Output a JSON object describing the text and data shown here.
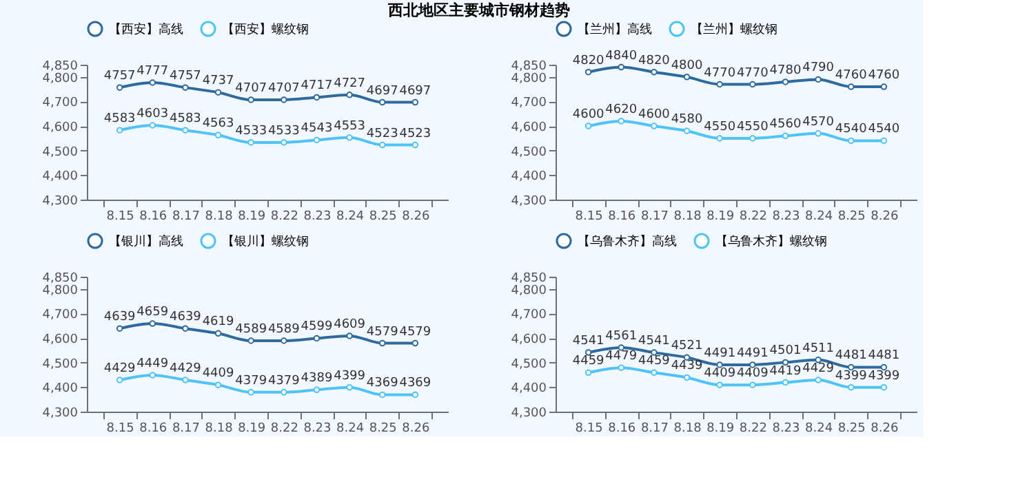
{
  "chart_data": [
    {
      "type": "line",
      "title": "西北地区主要城市钢材趋势",
      "categories": [
        "8.15",
        "8.16",
        "8.17",
        "8.18",
        "8.19",
        "8.22",
        "8.23",
        "8.24",
        "8.25",
        "8.26"
      ],
      "series": [
        {
          "name": "【西安】高线",
          "color": "#2f6a9e",
          "values": [
            4757,
            4777,
            4757,
            4737,
            4707,
            4707,
            4717,
            4727,
            4697,
            4697
          ]
        },
        {
          "name": "【西安】螺纹钢",
          "color": "#4fc3f7",
          "values": [
            4583,
            4603,
            4583,
            4563,
            4533,
            4533,
            4543,
            4553,
            4523,
            4523
          ]
        }
      ],
      "ylim": [
        4300,
        4850
      ],
      "yticks": [
        {
          "value": 4300,
          "label": "4,300"
        },
        {
          "value": 4400,
          "label": "4,400"
        },
        {
          "value": 4500,
          "label": "4,500"
        },
        {
          "value": 4600,
          "label": "4,600"
        },
        {
          "value": 4700,
          "label": "4,700"
        },
        {
          "value": 4800,
          "label": "4,800"
        },
        {
          "value": 4850,
          "label": "4,850"
        }
      ],
      "data_labels": true,
      "legend": "top",
      "marker": "circle",
      "line_style": "solid",
      "grid": false
    },
    {
      "type": "line",
      "categories": [
        "8.15",
        "8.16",
        "8.17",
        "8.18",
        "8.19",
        "8.22",
        "8.23",
        "8.24",
        "8.25",
        "8.26"
      ],
      "series": [
        {
          "name": "【兰州】高线",
          "color": "#2f6a9e",
          "values": [
            4820,
            4840,
            4820,
            4800,
            4770,
            4770,
            4780,
            4790,
            4760,
            4760
          ]
        },
        {
          "name": "【兰州】螺纹钢",
          "color": "#4fc3f7",
          "values": [
            4600,
            4620,
            4600,
            4580,
            4550,
            4550,
            4560,
            4570,
            4540,
            4540
          ]
        }
      ],
      "ylim": [
        4300,
        4850
      ],
      "yticks": [
        {
          "value": 4300,
          "label": "4,300"
        },
        {
          "value": 4400,
          "label": "4,400"
        },
        {
          "value": 4500,
          "label": "4,500"
        },
        {
          "value": 4600,
          "label": "4,600"
        },
        {
          "value": 4700,
          "label": "4,700"
        },
        {
          "value": 4800,
          "label": "4,800"
        },
        {
          "value": 4850,
          "label": "4,850"
        }
      ],
      "data_labels": true,
      "legend": "top",
      "marker": "circle",
      "line_style": "solid",
      "grid": false
    },
    {
      "type": "line",
      "categories": [
        "8.15",
        "8.16",
        "8.17",
        "8.18",
        "8.19",
        "8.22",
        "8.23",
        "8.24",
        "8.25",
        "8.26"
      ],
      "series": [
        {
          "name": "【银川】高线",
          "color": "#2f6a9e",
          "values": [
            4639,
            4659,
            4639,
            4619,
            4589,
            4589,
            4599,
            4609,
            4579,
            4579
          ]
        },
        {
          "name": "【银川】螺纹钢",
          "color": "#4fc3f7",
          "values": [
            4429,
            4449,
            4429,
            4409,
            4379,
            4379,
            4389,
            4399,
            4369,
            4369
          ]
        }
      ],
      "ylim": [
        4300,
        4850
      ],
      "yticks": [
        {
          "value": 4300,
          "label": "4,300"
        },
        {
          "value": 4400,
          "label": "4,400"
        },
        {
          "value": 4500,
          "label": "4,500"
        },
        {
          "value": 4600,
          "label": "4,600"
        },
        {
          "value": 4700,
          "label": "4,700"
        },
        {
          "value": 4800,
          "label": "4,800"
        },
        {
          "value": 4850,
          "label": "4,850"
        }
      ],
      "data_labels": true,
      "legend": "top",
      "marker": "circle",
      "line_style": "solid",
      "grid": false
    },
    {
      "type": "line",
      "categories": [
        "8.15",
        "8.16",
        "8.17",
        "8.18",
        "8.19",
        "8.22",
        "8.23",
        "8.24",
        "8.25",
        "8.26"
      ],
      "series": [
        {
          "name": "【乌鲁木齐】高线",
          "color": "#2f6a9e",
          "values": [
            4541,
            4561,
            4541,
            4521,
            4491,
            4491,
            4501,
            4511,
            4481,
            4481
          ]
        },
        {
          "name": "【乌鲁木齐】螺纹钢",
          "color": "#4fc3f7",
          "values": [
            4459,
            4479,
            4459,
            4439,
            4409,
            4409,
            4419,
            4429,
            4399,
            4399
          ]
        }
      ],
      "ylim": [
        4300,
        4850
      ],
      "yticks": [
        {
          "value": 4300,
          "label": "4,300"
        },
        {
          "value": 4400,
          "label": "4,400"
        },
        {
          "value": 4500,
          "label": "4,500"
        },
        {
          "value": 4600,
          "label": "4,600"
        },
        {
          "value": 4700,
          "label": "4,700"
        },
        {
          "value": 4800,
          "label": "4,800"
        },
        {
          "value": 4850,
          "label": "4,850"
        }
      ],
      "data_labels": true,
      "legend": "top",
      "marker": "circle",
      "line_style": "solid",
      "grid": false
    }
  ]
}
